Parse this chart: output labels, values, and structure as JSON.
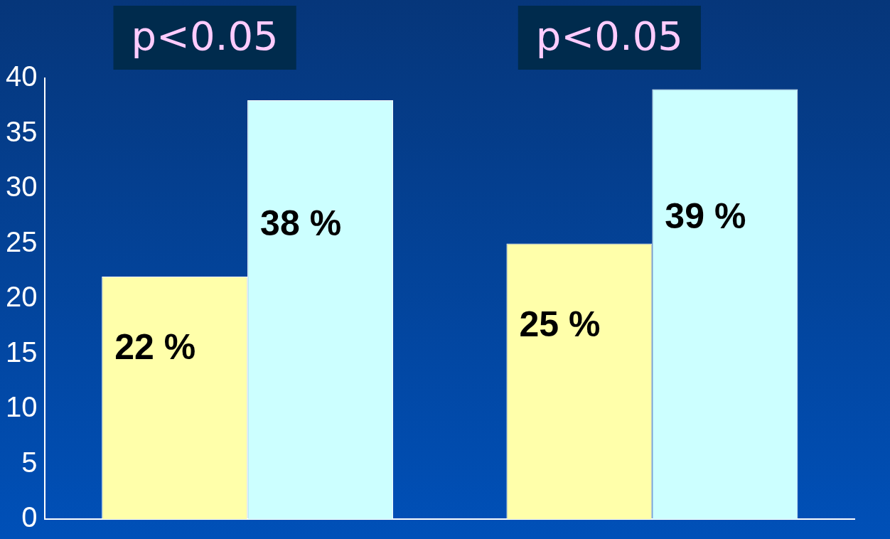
{
  "chart_data": {
    "type": "bar",
    "categories": [
      null,
      null
    ],
    "series": [
      {
        "color": "#ffffaa",
        "values": [
          22,
          25
        ],
        "value_labels": [
          "22 %",
          "25 %"
        ]
      },
      {
        "color": "#ccffff",
        "values": [
          38,
          39
        ],
        "value_labels": [
          "38 %",
          "39 %"
        ]
      }
    ],
    "ylim": [
      0,
      40
    ],
    "yticks": [
      0,
      5,
      10,
      15,
      20,
      25,
      30,
      35,
      40
    ],
    "grid": false,
    "legend": false,
    "annotations": [
      "p<0.05",
      "p<0.05"
    ]
  }
}
